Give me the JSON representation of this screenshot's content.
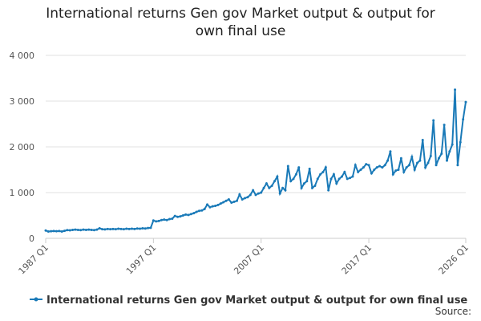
{
  "chart_data": {
    "type": "line",
    "title": "International returns Gen gov Market output & output for own final use",
    "source": "Source:",
    "categories": [
      "1987 Q1",
      null,
      null,
      null,
      null,
      null,
      null,
      null,
      null,
      null,
      null,
      null,
      null,
      null,
      null,
      null,
      null,
      null,
      null,
      null,
      null,
      null,
      null,
      null,
      null,
      null,
      null,
      null,
      null,
      null,
      null,
      null,
      null,
      null,
      null,
      null,
      null,
      null,
      null,
      null,
      "1997 Q1",
      null,
      null,
      null,
      null,
      null,
      null,
      null,
      null,
      null,
      null,
      null,
      null,
      null,
      null,
      null,
      null,
      null,
      null,
      null,
      null,
      null,
      null,
      null,
      null,
      null,
      null,
      null,
      null,
      null,
      null,
      null,
      null,
      null,
      null,
      null,
      null,
      null,
      null,
      null,
      "2007 Q1",
      null,
      null,
      null,
      null,
      null,
      null,
      null,
      null,
      null,
      null,
      null,
      null,
      null,
      null,
      null,
      null,
      null,
      null,
      null,
      null,
      null,
      null,
      null,
      null,
      null,
      null,
      null,
      null,
      null,
      null,
      null,
      null,
      null,
      null,
      null,
      null,
      null,
      null,
      null,
      "2017 Q1",
      null,
      null,
      null,
      null,
      null,
      null,
      null,
      null,
      null,
      null,
      null,
      null,
      null,
      null,
      null,
      null,
      null,
      null,
      null,
      null,
      null,
      null,
      null,
      null,
      null,
      null,
      null,
      null,
      null,
      null,
      null,
      null,
      null,
      null,
      null,
      "2026 Q1"
    ],
    "series": [
      {
        "name": "International returns Gen gov Market output & output for own final use",
        "color": "#1a7ab8",
        "values": [
          170,
          150,
          155,
          160,
          155,
          160,
          150,
          165,
          180,
          175,
          185,
          190,
          185,
          180,
          190,
          185,
          190,
          185,
          180,
          190,
          220,
          200,
          195,
          205,
          200,
          205,
          200,
          210,
          205,
          200,
          210,
          205,
          210,
          205,
          215,
          210,
          220,
          215,
          225,
          230,
          390,
          370,
          380,
          400,
          410,
          400,
          420,
          430,
          490,
          470,
          480,
          500,
          520,
          510,
          530,
          550,
          580,
          600,
          610,
          640,
          740,
          680,
          700,
          710,
          730,
          760,
          790,
          820,
          850,
          780,
          800,
          820,
          960,
          850,
          880,
          900,
          950,
          1050,
          950,
          980,
          1000,
          1100,
          1200,
          1100,
          1150,
          1250,
          1350,
          980,
          1100,
          1050,
          1580,
          1250,
          1300,
          1400,
          1550,
          1100,
          1200,
          1250,
          1520,
          1100,
          1150,
          1300,
          1400,
          1450,
          1550,
          1050,
          1300,
          1400,
          1200,
          1300,
          1350,
          1450,
          1300,
          1320,
          1350,
          1600,
          1450,
          1500,
          1550,
          1620,
          1600,
          1420,
          1500,
          1550,
          1580,
          1550,
          1600,
          1700,
          1900,
          1400,
          1480,
          1500,
          1750,
          1450,
          1550,
          1600,
          1780,
          1500,
          1650,
          1700,
          2150,
          1550,
          1650,
          1800,
          2580,
          1600,
          1750,
          1850,
          2480,
          1700,
          1900,
          2050,
          3250,
          1600,
          2100,
          2600,
          2980
        ]
      }
    ],
    "ylim": [
      0,
      4000
    ],
    "yticks": [
      0,
      {
        "value": 1000,
        "label": "1 000"
      },
      {
        "value": 2000,
        "label": "2 000"
      },
      {
        "value": 3000,
        "label": "3 000"
      },
      {
        "value": 4000,
        "label": "4 000"
      }
    ],
    "grid": true
  }
}
